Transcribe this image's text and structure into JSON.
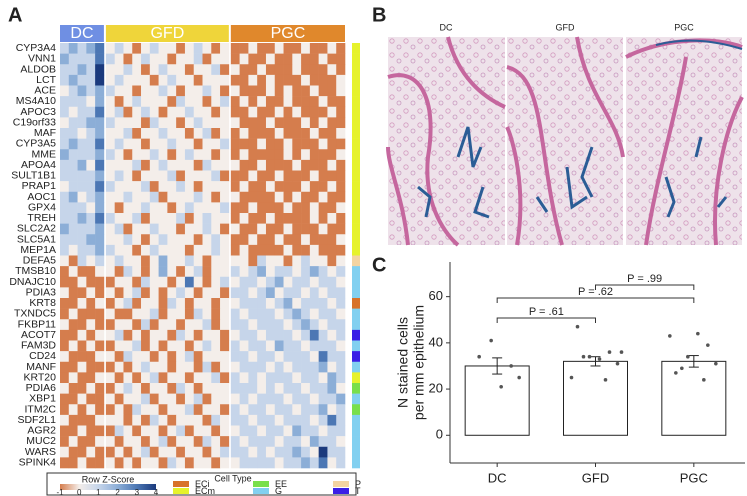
{
  "panel_a": {
    "label": "A",
    "groups": [
      {
        "name": "DC",
        "color": "#6f8fe3",
        "n": 5
      },
      {
        "name": "GFD",
        "color": "#efd53a",
        "n": 14
      },
      {
        "name": "PGC",
        "color": "#e0882c",
        "n": 13
      }
    ],
    "genes": [
      "CYP3A4",
      "VNN1",
      "ALDOB",
      "LCT",
      "ACE",
      "MS4A10",
      "APOC3",
      "C19orf33",
      "MAF",
      "CYP3A5",
      "MME",
      "APOA4",
      "SULT1B1",
      "PRAP1",
      "AOC1",
      "GPX4",
      "TREH",
      "SLC2A2",
      "SLC5A1",
      "MEP1A",
      "DEFA5",
      "TMSB10",
      "DNAJC10",
      "PDIA3",
      "KRT8",
      "TXNDC5",
      "FKBP11",
      "ACOT7",
      "FAM3D",
      "CD24",
      "MANF",
      "KRT20",
      "PDIA6",
      "XBP1",
      "ITM2C",
      "SDF2L1",
      "AGR2",
      "MUC2",
      "WARS",
      "SPINK4"
    ],
    "row_cell_type": [
      "ECm",
      "ECm",
      "ECm",
      "ECm",
      "ECm",
      "ECm",
      "ECm",
      "ECm",
      "ECm",
      "ECm",
      "ECm",
      "ECm",
      "ECm",
      "ECm",
      "ECm",
      "ECm",
      "ECm",
      "ECm",
      "ECm",
      "ECm",
      "P",
      "G",
      "G",
      "G",
      "ECi",
      "G",
      "G",
      "T",
      "G",
      "T",
      "G",
      "ECm",
      "EE",
      "G",
      "EE",
      "G",
      "G",
      "G",
      "G",
      "G"
    ],
    "z": [
      [
        1,
        2,
        1,
        2,
        3,
        0,
        1,
        0,
        -1,
        0,
        1,
        0,
        0,
        -1,
        0,
        1,
        0,
        -1,
        0,
        -1,
        -1,
        0,
        -1,
        -1,
        0,
        -1,
        -1,
        0,
        -1,
        -1,
        0,
        -1
      ],
      [
        2,
        1,
        1,
        1,
        3,
        1,
        0,
        -1,
        0,
        1,
        0,
        0,
        -1,
        0,
        0,
        1,
        -1,
        0,
        0,
        -1,
        0,
        -1,
        -1,
        0,
        -1,
        -1,
        0,
        -1,
        -1,
        0,
        -1,
        -1
      ],
      [
        1,
        1,
        2,
        1,
        4,
        0,
        0,
        1,
        0,
        -1,
        0,
        1,
        0,
        0,
        -1,
        0,
        0,
        1,
        -1,
        0,
        -1,
        -1,
        0,
        -1,
        -1,
        -1,
        0,
        -1,
        -1,
        -1,
        0,
        -1
      ],
      [
        1,
        2,
        1,
        1,
        4,
        0,
        1,
        0,
        0,
        0,
        -1,
        0,
        1,
        0,
        0,
        -1,
        0,
        0,
        0,
        -1,
        -1,
        0,
        -1,
        0,
        -1,
        -1,
        -1,
        0,
        -1,
        -1,
        -1,
        0
      ],
      [
        0,
        1,
        2,
        1,
        2,
        1,
        0,
        0,
        -1,
        0,
        0,
        1,
        0,
        -1,
        0,
        0,
        1,
        0,
        -1,
        0,
        -1,
        -1,
        -1,
        0,
        -1,
        0,
        -1,
        -1,
        0,
        -1,
        -1,
        0
      ],
      [
        1,
        1,
        1,
        0,
        2,
        0,
        -1,
        0,
        1,
        0,
        0,
        0,
        -1,
        1,
        0,
        0,
        -1,
        0,
        1,
        -1,
        0,
        -1,
        0,
        -1,
        -1,
        0,
        -1,
        -1,
        -1,
        0,
        -1,
        -1
      ],
      [
        1,
        0,
        1,
        1,
        3,
        0,
        1,
        -1,
        0,
        1,
        0,
        -1,
        0,
        0,
        1,
        0,
        0,
        -1,
        0,
        -1,
        -1,
        0,
        -1,
        -1,
        0,
        -1,
        0,
        -1,
        -1,
        -1,
        0,
        -1
      ],
      [
        0,
        1,
        1,
        2,
        2,
        1,
        0,
        0,
        0,
        -1,
        1,
        0,
        0,
        -1,
        0,
        1,
        0,
        0,
        0,
        0,
        -1,
        -1,
        -1,
        0,
        -1,
        -1,
        -1,
        0,
        -1,
        0,
        -1,
        -1
      ],
      [
        1,
        1,
        0,
        1,
        2,
        0,
        0,
        1,
        -1,
        0,
        0,
        1,
        0,
        0,
        -1,
        0,
        1,
        -1,
        0,
        -1,
        0,
        -1,
        -1,
        -1,
        0,
        -1,
        -1,
        -1,
        0,
        -1,
        -1,
        0
      ],
      [
        1,
        2,
        1,
        1,
        3,
        0,
        1,
        0,
        0,
        -1,
        0,
        0,
        1,
        0,
        0,
        -1,
        0,
        0,
        1,
        -1,
        -1,
        -1,
        0,
        -1,
        -1,
        0,
        -1,
        -1,
        -1,
        0,
        -1,
        -1
      ],
      [
        2,
        1,
        1,
        1,
        2,
        1,
        0,
        -1,
        0,
        0,
        1,
        0,
        -1,
        0,
        1,
        0,
        0,
        -1,
        0,
        -1,
        0,
        -1,
        -1,
        -1,
        -1,
        0,
        -1,
        0,
        -1,
        -1,
        -1,
        0
      ],
      [
        1,
        1,
        2,
        0,
        3,
        0,
        0,
        0,
        1,
        -1,
        0,
        1,
        0,
        0,
        0,
        -1,
        1,
        0,
        0,
        0,
        -1,
        -1,
        0,
        -1,
        -1,
        -1,
        0,
        -1,
        -1,
        -1,
        0,
        -1
      ],
      [
        1,
        1,
        1,
        1,
        2,
        0,
        1,
        0,
        -1,
        0,
        0,
        0,
        1,
        -1,
        0,
        0,
        0,
        1,
        -1,
        -1,
        -1,
        0,
        -1,
        -1,
        0,
        -1,
        -1,
        -1,
        0,
        -1,
        -1,
        -1
      ],
      [
        0,
        1,
        1,
        1,
        3,
        1,
        0,
        0,
        0,
        1,
        -1,
        0,
        0,
        1,
        0,
        -1,
        0,
        0,
        0,
        -1,
        0,
        -1,
        -1,
        0,
        -1,
        -1,
        -1,
        0,
        -1,
        -1,
        0,
        -1
      ],
      [
        1,
        2,
        0,
        1,
        2,
        0,
        0,
        1,
        0,
        0,
        1,
        -1,
        0,
        0,
        0,
        1,
        0,
        -1,
        0,
        0,
        -1,
        -1,
        -1,
        -1,
        0,
        -1,
        0,
        -1,
        -1,
        0,
        -1,
        -1
      ],
      [
        1,
        1,
        1,
        0,
        2,
        0,
        -1,
        0,
        0,
        1,
        0,
        0,
        -1,
        0,
        1,
        0,
        0,
        0,
        1,
        -1,
        -1,
        0,
        -1,
        -1,
        -1,
        0,
        -1,
        -1,
        0,
        -1,
        -1,
        0
      ],
      [
        1,
        1,
        2,
        1,
        3,
        1,
        0,
        0,
        1,
        -1,
        0,
        0,
        0,
        1,
        -1,
        0,
        1,
        0,
        0,
        -1,
        0,
        -1,
        -1,
        0,
        -1,
        -1,
        -1,
        -1,
        0,
        -1,
        0,
        -1
      ],
      [
        2,
        1,
        1,
        1,
        2,
        0,
        1,
        -1,
        0,
        0,
        1,
        0,
        0,
        -1,
        0,
        0,
        1,
        0,
        -1,
        0,
        -1,
        -1,
        0,
        -1,
        -1,
        0,
        -1,
        -1,
        -1,
        0,
        -1,
        -1
      ],
      [
        1,
        1,
        1,
        2,
        2,
        0,
        0,
        1,
        0,
        -1,
        0,
        1,
        0,
        0,
        0,
        -1,
        0,
        1,
        0,
        -1,
        -1,
        0,
        -1,
        -1,
        0,
        -1,
        -1,
        0,
        -1,
        -1,
        -1,
        0
      ],
      [
        1,
        0,
        1,
        1,
        2,
        1,
        0,
        0,
        -1,
        0,
        1,
        0,
        0,
        0,
        -1,
        0,
        0,
        1,
        0,
        -1,
        0,
        -1,
        -1,
        -1,
        -1,
        0,
        -1,
        -1,
        0,
        -1,
        -1,
        -1
      ],
      [
        0,
        -1,
        1,
        0,
        1,
        0,
        1,
        0,
        0,
        -1,
        0,
        2,
        0,
        0,
        1,
        0,
        -1,
        0,
        0,
        0,
        0,
        -1,
        1,
        0,
        0,
        -1,
        0,
        1,
        0,
        0,
        -1,
        0
      ],
      [
        -1,
        0,
        -1,
        -1,
        0,
        0,
        -1,
        1,
        0,
        -1,
        0,
        2,
        0,
        -1,
        0,
        1,
        -1,
        0,
        0,
        1,
        0,
        1,
        2,
        0,
        1,
        1,
        0,
        1,
        2,
        1,
        0,
        1
      ],
      [
        -1,
        -1,
        0,
        -1,
        -1,
        -1,
        0,
        0,
        -1,
        1,
        0,
        0,
        -1,
        0,
        3,
        0,
        -1,
        0,
        1,
        0,
        1,
        1,
        0,
        1,
        2,
        0,
        1,
        1,
        0,
        1,
        1,
        0
      ],
      [
        0,
        -1,
        -1,
        0,
        -1,
        0,
        -1,
        0,
        1,
        -1,
        0,
        -1,
        0,
        1,
        0,
        -1,
        0,
        0,
        -1,
        1,
        1,
        0,
        1,
        2,
        0,
        1,
        1,
        0,
        1,
        0,
        1,
        1
      ],
      [
        -1,
        -1,
        0,
        -1,
        0,
        -1,
        0,
        1,
        -1,
        0,
        0,
        -1,
        1,
        0,
        -1,
        0,
        0,
        -1,
        0,
        0,
        1,
        1,
        1,
        0,
        1,
        2,
        0,
        1,
        1,
        1,
        0,
        1
      ],
      [
        -1,
        0,
        -1,
        -1,
        -1,
        0,
        -1,
        -1,
        0,
        0,
        1,
        -1,
        0,
        0,
        -1,
        1,
        0,
        -1,
        0,
        1,
        0,
        1,
        1,
        1,
        0,
        1,
        2,
        1,
        0,
        1,
        1,
        0
      ],
      [
        0,
        -1,
        -1,
        0,
        -1,
        -1,
        0,
        0,
        -1,
        1,
        -1,
        0,
        0,
        -1,
        0,
        0,
        1,
        -1,
        0,
        1,
        1,
        0,
        1,
        1,
        1,
        0,
        1,
        2,
        1,
        0,
        1,
        1
      ],
      [
        -1,
        -1,
        0,
        -1,
        0,
        0,
        1,
        -1,
        0,
        -1,
        0,
        0,
        -1,
        1,
        0,
        -1,
        0,
        0,
        -1,
        0,
        1,
        1,
        0,
        1,
        1,
        1,
        0,
        1,
        3,
        1,
        0,
        1
      ],
      [
        -1,
        0,
        -1,
        0,
        -1,
        -1,
        0,
        0,
        1,
        -1,
        0,
        -1,
        0,
        0,
        -1,
        0,
        1,
        0,
        -1,
        1,
        0,
        1,
        1,
        0,
        2,
        1,
        1,
        0,
        1,
        1,
        1,
        0
      ],
      [
        0,
        -1,
        -1,
        -1,
        0,
        0,
        -1,
        1,
        0,
        0,
        -1,
        0,
        -1,
        0,
        1,
        -1,
        0,
        0,
        0,
        1,
        1,
        0,
        1,
        1,
        0,
        1,
        1,
        1,
        0,
        3,
        1,
        1
      ],
      [
        -1,
        -1,
        0,
        -1,
        -1,
        -1,
        0,
        -1,
        0,
        1,
        0,
        0,
        -1,
        0,
        0,
        -1,
        1,
        -1,
        0,
        0,
        1,
        1,
        1,
        0,
        1,
        0,
        1,
        1,
        1,
        2,
        0,
        1
      ],
      [
        -1,
        0,
        -1,
        -1,
        0,
        0,
        -1,
        0,
        -1,
        0,
        1,
        -1,
        0,
        0,
        -1,
        0,
        0,
        1,
        -1,
        1,
        0,
        1,
        0,
        1,
        1,
        1,
        0,
        1,
        1,
        0,
        2,
        1
      ],
      [
        0,
        -1,
        -1,
        0,
        -1,
        -1,
        0,
        1,
        0,
        -1,
        0,
        0,
        -1,
        1,
        0,
        -1,
        0,
        0,
        0,
        1,
        1,
        1,
        0,
        1,
        0,
        1,
        1,
        0,
        1,
        1,
        2,
        0
      ],
      [
        -1,
        -1,
        0,
        -1,
        -1,
        0,
        -1,
        0,
        0,
        1,
        -1,
        0,
        0,
        -1,
        0,
        1,
        -1,
        0,
        0,
        0,
        1,
        0,
        1,
        1,
        1,
        0,
        1,
        1,
        0,
        1,
        1,
        2
      ],
      [
        -1,
        0,
        -1,
        0,
        -1,
        -1,
        0,
        -1,
        1,
        0,
        0,
        -1,
        0,
        0,
        1,
        -1,
        0,
        0,
        -1,
        1,
        0,
        1,
        1,
        0,
        1,
        1,
        0,
        1,
        1,
        2,
        0,
        1
      ],
      [
        0,
        -1,
        -1,
        -1,
        0,
        0,
        0,
        -1,
        0,
        -1,
        1,
        0,
        -1,
        0,
        0,
        0,
        -1,
        1,
        0,
        1,
        1,
        0,
        1,
        1,
        0,
        1,
        1,
        1,
        0,
        1,
        3,
        1
      ],
      [
        -1,
        -1,
        0,
        -1,
        -1,
        -1,
        1,
        0,
        -1,
        0,
        0,
        -1,
        0,
        1,
        -1,
        0,
        0,
        -1,
        0,
        0,
        1,
        1,
        0,
        1,
        1,
        0,
        2,
        1,
        1,
        0,
        1,
        1
      ],
      [
        -1,
        0,
        -1,
        -1,
        0,
        0,
        -1,
        0,
        0,
        -1,
        0,
        1,
        -1,
        0,
        0,
        -1,
        1,
        0,
        -1,
        1,
        0,
        1,
        1,
        1,
        0,
        1,
        1,
        0,
        2,
        1,
        1,
        0
      ],
      [
        0,
        -1,
        -1,
        0,
        -1,
        -1,
        0,
        -1,
        0,
        1,
        -1,
        0,
        0,
        -1,
        0,
        0,
        -1,
        0,
        1,
        1,
        1,
        0,
        1,
        0,
        1,
        1,
        2,
        1,
        0,
        4,
        1,
        1
      ],
      [
        -1,
        -1,
        0,
        -1,
        -1,
        0,
        -1,
        0,
        -1,
        0,
        0,
        -1,
        1,
        0,
        -1,
        0,
        0,
        -1,
        0,
        0,
        1,
        1,
        1,
        1,
        0,
        1,
        1,
        2,
        1,
        3,
        0,
        1
      ]
    ],
    "zscore_legend": {
      "title": "Row Z-Score",
      "ticks": [
        -1,
        0,
        1,
        2,
        3,
        4
      ],
      "colors": [
        "#d57d4d",
        "#f4eeea",
        "#c6d5ea",
        "#8caed7",
        "#4c77b4",
        "#1b3a7d"
      ]
    },
    "cell_type_legend": {
      "title": "Cell Type",
      "items": [
        {
          "name": "ECi",
          "color": "#d8722a"
        },
        {
          "name": "ECm",
          "color": "#e6f22c"
        },
        {
          "name": "EE",
          "color": "#79df4b"
        },
        {
          "name": "G",
          "color": "#82d0f0"
        },
        {
          "name": "P",
          "color": "#f3d4a2"
        },
        {
          "name": "T",
          "color": "#3a1ee6"
        }
      ]
    }
  },
  "panel_b": {
    "label": "B",
    "images": [
      "DC",
      "GFD",
      "PGC"
    ]
  },
  "panel_c": {
    "label": "C",
    "type": "bar",
    "categories": [
      "DC",
      "GFD",
      "PGC"
    ],
    "values": [
      30,
      32,
      32
    ],
    "errors": [
      3.5,
      2,
      2.5
    ],
    "points": [
      [
        34,
        30,
        41,
        25,
        21
      ],
      [
        47,
        36,
        34,
        31,
        33,
        25,
        24,
        34,
        36
      ],
      [
        27,
        39,
        34,
        31,
        44,
        43,
        24,
        29
      ]
    ],
    "ylim": [
      -12,
      75
    ],
    "yticks": [
      0,
      20,
      40,
      60
    ],
    "ylabel": [
      "N stained cells",
      "per mm epithelium"
    ],
    "comparisons": [
      {
        "label": "P = .99",
        "between": [
          "GFD",
          "PGC"
        ]
      },
      {
        "label": "P = .62",
        "between": [
          "DC",
          "PGC"
        ]
      },
      {
        "label": "P = .61",
        "between": [
          "DC",
          "GFD"
        ]
      }
    ]
  }
}
